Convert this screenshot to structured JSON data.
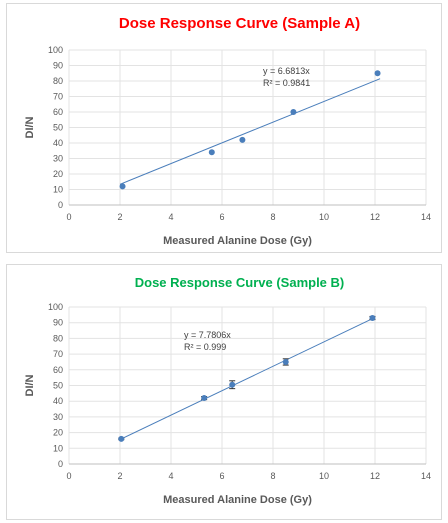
{
  "chart_data": [
    {
      "type": "scatter",
      "title": "Dose Response Curve (Sample A)",
      "title_color": "#ff0000",
      "xlabel": "Measured Alanine Dose (Gy)",
      "ylabel": "DI/N",
      "xlim": [
        0,
        14
      ],
      "ylim": [
        0,
        100
      ],
      "xticks": [
        0,
        2,
        4,
        6,
        8,
        10,
        12,
        14
      ],
      "yticks": [
        0,
        10,
        20,
        30,
        40,
        50,
        60,
        70,
        80,
        90,
        100
      ],
      "grid": true,
      "marker_color": "#4a7ebb",
      "series": [
        {
          "points": [
            {
              "x": 2.1,
              "y": 12
            },
            {
              "x": 5.6,
              "y": 34
            },
            {
              "x": 6.8,
              "y": 42
            },
            {
              "x": 8.8,
              "y": 60
            },
            {
              "x": 12.1,
              "y": 85
            }
          ]
        }
      ],
      "trendline": {
        "slope": 6.6813,
        "x_range": [
          2.0,
          12.2
        ]
      },
      "annotations": [
        "y = 6.6813x",
        "R² = 0.9841"
      ]
    },
    {
      "type": "scatter",
      "title": "Dose Response Curve (Sample B)",
      "title_color": "#00b050",
      "xlabel": "Measured Alanine Dose (Gy)",
      "ylabel": "DI/N",
      "xlim": [
        0,
        14
      ],
      "ylim": [
        0,
        100
      ],
      "xticks": [
        0,
        2,
        4,
        6,
        8,
        10,
        12,
        14
      ],
      "yticks": [
        0,
        10,
        20,
        30,
        40,
        50,
        60,
        70,
        80,
        90,
        100
      ],
      "grid": true,
      "marker_color": "#4a7ebb",
      "series": [
        {
          "points": [
            {
              "x": 2.05,
              "y": 16,
              "err": 0.5
            },
            {
              "x": 5.3,
              "y": 42,
              "err": 1
            },
            {
              "x": 6.4,
              "y": 50.5,
              "err": 2.5
            },
            {
              "x": 8.5,
              "y": 65,
              "err": 2
            },
            {
              "x": 11.9,
              "y": 93,
              "err": 1
            }
          ]
        }
      ],
      "trendline": {
        "slope": 7.7806,
        "x_range": [
          2.0,
          12.0
        ]
      },
      "annotations": [
        "y = 7.7806x",
        "R² = 0.999"
      ]
    }
  ]
}
